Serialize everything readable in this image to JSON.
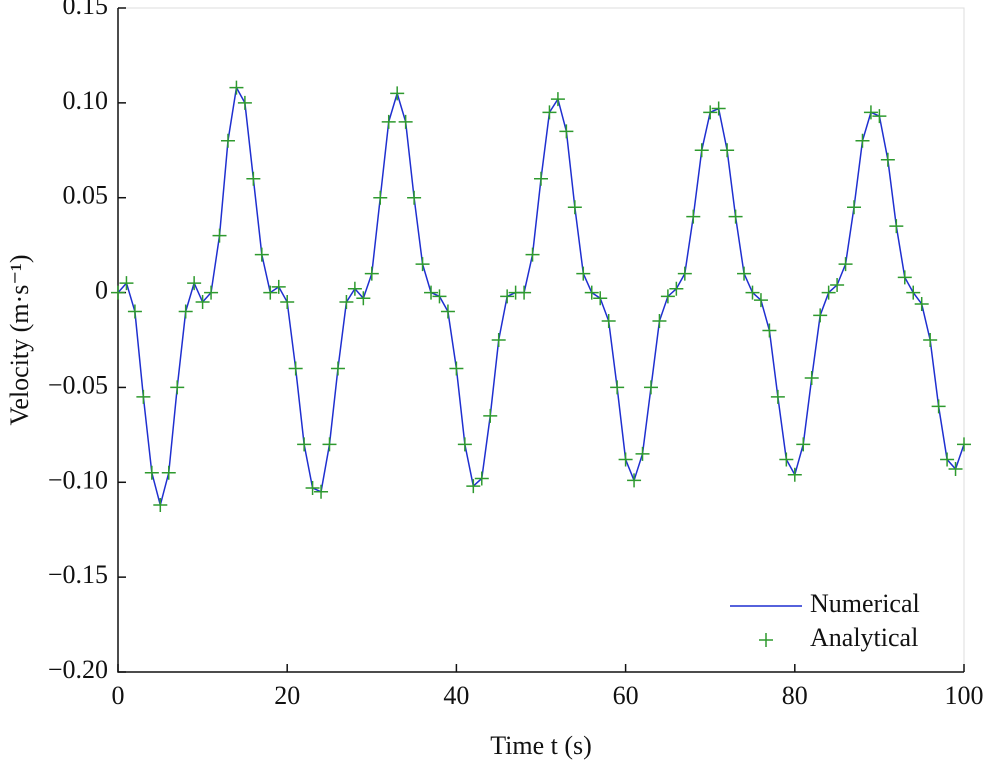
{
  "chart_data": {
    "type": "line",
    "xlabel": "Time t (s)",
    "ylabel": "Velocity (m·s⁻¹)",
    "xlim": [
      0,
      100
    ],
    "ylim": [
      -0.2,
      0.15
    ],
    "xticks": [
      0,
      20,
      40,
      60,
      80,
      100
    ],
    "yticks": [
      0.15,
      {
        "value": 0.1,
        "label": "0.10"
      },
      0.05,
      0,
      {
        "value": -0.05,
        "label": "−0.05"
      },
      {
        "value": -0.1,
        "label": "−0.10"
      },
      {
        "value": -0.15,
        "label": "−0.15"
      },
      {
        "value": -0.2,
        "label": "−0.20"
      }
    ],
    "legend": "lower right",
    "x": [
      0,
      1,
      2,
      3,
      4,
      5,
      6,
      7,
      8,
      9,
      10,
      11,
      12,
      13,
      14,
      15,
      16,
      17,
      18,
      19,
      20,
      21,
      22,
      23,
      24,
      25,
      26,
      27,
      28,
      29,
      30,
      31,
      32,
      33,
      34,
      35,
      36,
      37,
      38,
      39,
      40,
      41,
      42,
      43,
      44,
      45,
      46,
      47,
      48,
      49,
      50,
      51,
      52,
      53,
      54,
      55,
      56,
      57,
      58,
      59,
      60,
      61,
      62,
      63,
      64,
      65,
      66,
      67,
      68,
      69,
      70,
      71,
      72,
      73,
      74,
      75,
      76,
      77,
      78,
      79,
      80,
      81,
      82,
      83,
      84,
      85,
      86,
      87,
      88,
      89,
      90,
      91,
      92,
      93,
      94,
      95,
      96,
      97,
      98,
      99,
      100
    ],
    "series": [
      {
        "name": "Numerical",
        "color": "#1f2fd0",
        "marker": "line",
        "values": [
          0,
          0.005,
          -0.01,
          -0.055,
          -0.095,
          -0.112,
          -0.095,
          -0.05,
          -0.01,
          0.005,
          -0.005,
          0.0,
          0.03,
          0.08,
          0.108,
          0.1,
          0.06,
          0.02,
          0.0,
          0.003,
          -0.005,
          -0.04,
          -0.08,
          -0.103,
          -0.105,
          -0.08,
          -0.04,
          -0.005,
          0.002,
          -0.003,
          0.01,
          0.05,
          0.09,
          0.105,
          0.09,
          0.05,
          0.015,
          0.0,
          -0.002,
          -0.01,
          -0.04,
          -0.08,
          -0.102,
          -0.098,
          -0.065,
          -0.025,
          -0.002,
          0.0,
          0.0,
          0.02,
          0.06,
          0.095,
          0.102,
          0.085,
          0.045,
          0.01,
          0.0,
          -0.003,
          -0.015,
          -0.05,
          -0.088,
          -0.099,
          -0.085,
          -0.05,
          -0.015,
          -0.002,
          0.002,
          0.01,
          0.04,
          0.075,
          0.095,
          0.097,
          0.075,
          0.04,
          0.01,
          0.0,
          -0.004,
          -0.02,
          -0.055,
          -0.088,
          -0.096,
          -0.08,
          -0.045,
          -0.012,
          0.0,
          0.004,
          0.015,
          0.045,
          0.08,
          0.095,
          0.093,
          0.07,
          0.035,
          0.008,
          0.0,
          -0.006,
          -0.025,
          -0.06,
          -0.088,
          -0.093,
          -0.08
        ]
      },
      {
        "name": "Analytical",
        "color": "#2e9a2e",
        "marker": "plus",
        "values": [
          0,
          0.005,
          -0.01,
          -0.055,
          -0.095,
          -0.112,
          -0.095,
          -0.05,
          -0.01,
          0.005,
          -0.005,
          0.0,
          0.03,
          0.08,
          0.108,
          0.1,
          0.06,
          0.02,
          0.0,
          0.003,
          -0.005,
          -0.04,
          -0.08,
          -0.103,
          -0.105,
          -0.08,
          -0.04,
          -0.005,
          0.002,
          -0.003,
          0.01,
          0.05,
          0.09,
          0.105,
          0.09,
          0.05,
          0.015,
          0.0,
          -0.002,
          -0.01,
          -0.04,
          -0.08,
          -0.102,
          -0.098,
          -0.065,
          -0.025,
          -0.002,
          0.0,
          0.0,
          0.02,
          0.06,
          0.095,
          0.102,
          0.085,
          0.045,
          0.01,
          0.0,
          -0.003,
          -0.015,
          -0.05,
          -0.088,
          -0.099,
          -0.085,
          -0.05,
          -0.015,
          -0.002,
          0.002,
          0.01,
          0.04,
          0.075,
          0.095,
          0.097,
          0.075,
          0.04,
          0.01,
          0.0,
          -0.004,
          -0.02,
          -0.055,
          -0.088,
          -0.096,
          -0.08,
          -0.045,
          -0.012,
          0.0,
          0.004,
          0.015,
          0.045,
          0.08,
          0.095,
          0.093,
          0.07,
          0.035,
          0.008,
          0.0,
          -0.006,
          -0.025,
          -0.06,
          -0.088,
          -0.093,
          -0.08
        ]
      }
    ]
  }
}
